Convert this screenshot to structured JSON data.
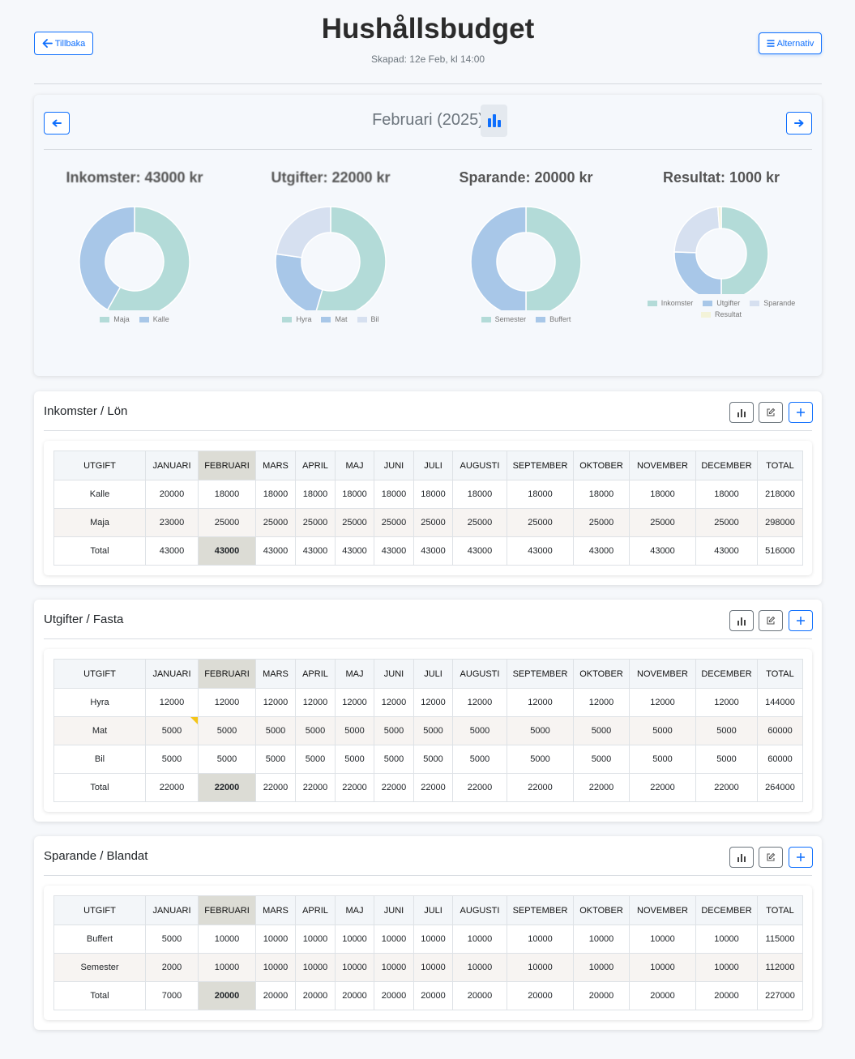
{
  "header": {
    "back_label": "Tillbaka",
    "title": "Hushållsbudget",
    "subtitle": "Skapad: 12e Feb, kl 14:00",
    "menu_label": "Alternativ"
  },
  "summary": {
    "month_label": "Februari (2025)",
    "charts": [
      {
        "title": "Inkomster: 43000 kr",
        "slices": [
          {
            "label": "Maja",
            "value": 25000,
            "color": "#b3dbd8"
          },
          {
            "label": "Kalle",
            "value": 18000,
            "color": "#a8c7e8"
          }
        ]
      },
      {
        "title": "Utgifter: 22000 kr",
        "slices": [
          {
            "label": "Hyra",
            "value": 12000,
            "color": "#b3dbd8"
          },
          {
            "label": "Mat",
            "value": 5000,
            "color": "#a8c7e8"
          },
          {
            "label": "Bil",
            "value": 5000,
            "color": "#d6e0f0"
          }
        ]
      },
      {
        "title": "Sparande: 20000 kr",
        "slices": [
          {
            "label": "Semester",
            "value": 10000,
            "color": "#b3dbd8"
          },
          {
            "label": "Buffert",
            "value": 10000,
            "color": "#a8c7e8"
          }
        ]
      },
      {
        "title": "Resultat: 1000 kr",
        "slices": [
          {
            "label": "Inkomster",
            "value": 43000,
            "color": "#b3dbd8"
          },
          {
            "label": "Utgifter",
            "value": 22000,
            "color": "#a8c7e8"
          },
          {
            "label": "Sparande",
            "value": 20000,
            "color": "#d6e0f0"
          },
          {
            "label": "Resultat",
            "value": 1000,
            "color": "#f3f3d9"
          }
        ]
      }
    ]
  },
  "columns": [
    "UTGIFT",
    "JANUARI",
    "FEBRUARI",
    "MARS",
    "APRIL",
    "MAJ",
    "JUNI",
    "JULI",
    "AUGUSTI",
    "SEPTEMBER",
    "OKTOBER",
    "NOVEMBER",
    "DECEMBER",
    "TOTAL"
  ],
  "sections": [
    {
      "title": "Inkomster / Lön",
      "rows": [
        [
          "Kalle",
          "20000",
          "18000",
          "18000",
          "18000",
          "18000",
          "18000",
          "18000",
          "18000",
          "18000",
          "18000",
          "18000",
          "18000",
          "218000"
        ],
        [
          "Maja",
          "23000",
          "25000",
          "25000",
          "25000",
          "25000",
          "25000",
          "25000",
          "25000",
          "25000",
          "25000",
          "25000",
          "25000",
          "298000"
        ],
        [
          "Total",
          "43000",
          "43000",
          "43000",
          "43000",
          "43000",
          "43000",
          "43000",
          "43000",
          "43000",
          "43000",
          "43000",
          "43000",
          "516000"
        ]
      ]
    },
    {
      "title": "Utgifter / Fasta",
      "rows": [
        [
          "Hyra",
          "12000",
          "12000",
          "12000",
          "12000",
          "12000",
          "12000",
          "12000",
          "12000",
          "12000",
          "12000",
          "12000",
          "12000",
          "144000"
        ],
        [
          "Mat",
          "5000",
          "5000",
          "5000",
          "5000",
          "5000",
          "5000",
          "5000",
          "5000",
          "5000",
          "5000",
          "5000",
          "5000",
          "60000"
        ],
        [
          "Bil",
          "5000",
          "5000",
          "5000",
          "5000",
          "5000",
          "5000",
          "5000",
          "5000",
          "5000",
          "5000",
          "5000",
          "5000",
          "60000"
        ],
        [
          "Total",
          "22000",
          "22000",
          "22000",
          "22000",
          "22000",
          "22000",
          "22000",
          "22000",
          "22000",
          "22000",
          "22000",
          "22000",
          "264000"
        ]
      ]
    },
    {
      "title": "Sparande / Blandat",
      "rows": [
        [
          "Buffert",
          "5000",
          "10000",
          "10000",
          "10000",
          "10000",
          "10000",
          "10000",
          "10000",
          "10000",
          "10000",
          "10000",
          "10000",
          "115000"
        ],
        [
          "Semester",
          "2000",
          "10000",
          "10000",
          "10000",
          "10000",
          "10000",
          "10000",
          "10000",
          "10000",
          "10000",
          "10000",
          "10000",
          "112000"
        ],
        [
          "Total",
          "7000",
          "20000",
          "20000",
          "20000",
          "20000",
          "20000",
          "20000",
          "20000",
          "20000",
          "20000",
          "20000",
          "20000",
          "227000"
        ]
      ]
    }
  ]
}
